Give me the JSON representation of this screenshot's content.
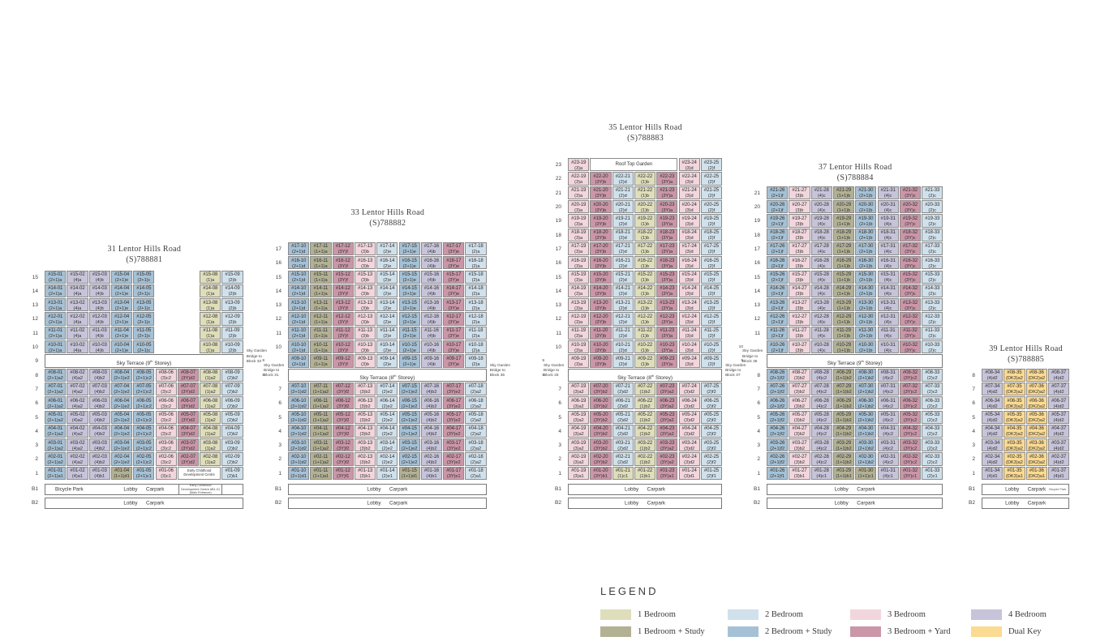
{
  "legend": {
    "title": "LEGEND",
    "items": [
      {
        "label": "1 Bedroom",
        "color": "#dfdebb"
      },
      {
        "label": "1 Bedroom + Study",
        "color": "#b3b194"
      },
      {
        "label": "2 Bedroom",
        "color": "#d0e1ec"
      },
      {
        "label": "2 Bedroom + Study",
        "color": "#a6c1d5"
      },
      {
        "label": "3 Bedroom",
        "color": "#f2d6dd"
      },
      {
        "label": "3 Bedroom + Yard",
        "color": "#ca96a8"
      },
      {
        "label": "4 Bedroom",
        "color": "#c7c4da"
      },
      {
        "label": "Dual Key",
        "color": "#fbda92"
      }
    ]
  },
  "unit_colors": {
    "1": "#dfdebb",
    "1+1": "#b3b194",
    "2": "#d0e1ec",
    "2+1": "#a6c1d5",
    "3": "#f2d6dd",
    "3Y": "#ca96a8",
    "4": "#c7c4da",
    "DK": "#fbda92"
  },
  "blocks": [
    {
      "name": "31 Lentor Hills Road",
      "postal": "(S)788881",
      "bridge_right": "Sky Garden Bridge to Block 33",
      "rows": [
        {
          "floors": [
            "15",
            "14",
            "13",
            "12",
            "11",
            "10"
          ],
          "cells": [
            "01 (2+1)a",
            "02 (4)a",
            "03 (4)b",
            "04 (2+1)e",
            "05 (2+1)c",
            {
              "gap": 2
            },
            "08 (1)a",
            "09 (2)b"
          ]
        },
        {
          "floor": "9",
          "terrace": "Sky Terrace (9th Storey)"
        },
        {
          "floors": [
            "8",
            "7",
            "6",
            "5",
            "4",
            "3",
            "2"
          ],
          "cells": [
            "01 (2+1)a2",
            "02 (4)a2",
            "03 (4)b2",
            "04 (2+1)e2",
            "05 (2+1)c2",
            "06 (3)c2",
            "07 (3Y)d2",
            "08 (1)a2",
            "09 (2)b2"
          ]
        },
        {
          "floors": [
            "1"
          ],
          "cells": [
            "01 (2+1)a1",
            "02 (4)a1",
            "03 (4)b1",
            "04 (1+1)d1",
            "05 (2+1)c1",
            "06 (3)c1",
            {
              "box": "Early Childhood Development Centre",
              "span": 2,
              "small": true
            },
            "09 (2)b1"
          ]
        },
        {
          "floor": "B1",
          "basement": {
            "left": "Bicycle Park",
            "center": "Lobby      Carpark",
            "rightbox": "Early Childhood Development Centre #B1-01 (Main Entrance)"
          }
        },
        {
          "floor": "B2",
          "basement": {
            "center": "Lobby      Carpark"
          }
        }
      ]
    },
    {
      "name": "33 Lentor Hills Road",
      "postal": "(S)788882",
      "bridge_left": "Sky Garden Bridge to Block 31",
      "bridge_right": "Sky Garden Bridge to Block 35",
      "rows": [
        {
          "floors": [
            "17",
            "16",
            "15",
            "14",
            "13",
            "12",
            "11",
            "10",
            "9"
          ],
          "cells": [
            "10 (2+1)d",
            "11 (1+1)a",
            "12 (3Y)f",
            "13 (3)b",
            "14 (2)e",
            "15 (2+1)e",
            "16 (4)b",
            "17 (3Y)e",
            "18 (2)a"
          ]
        },
        {
          "floor": "8",
          "terrace": "Sky Terrace (8th Storey)"
        },
        {
          "floors": [
            "7",
            "6",
            "5",
            "4",
            "3",
            "2"
          ],
          "cells": [
            "10 (2+1)d2",
            "11 (1+1)a2",
            "12 (3Y)f2",
            "13 (3)b2",
            "14 (2)e2",
            "15 (2+1)e2",
            "16 (4)b2",
            "17 (3Y)e2",
            "18 (2)a2"
          ]
        },
        {
          "floors": [
            "1"
          ],
          "cells": [
            "10 (2+1)d1",
            "11 (1+1)a1",
            "12 (3Y)f1",
            "13 (3)b1",
            "14 (2)e1",
            "15 (1+1)d1",
            "16 (4)b1",
            "17 (3Y)e1",
            "18 (2)a1"
          ]
        },
        {
          "floor": "B1",
          "basement": {
            "center": "Lobby      Carpark"
          }
        },
        {
          "floor": "B2",
          "basement": {
            "center": "Lobby      Carpark"
          }
        }
      ]
    },
    {
      "name": "35 Lentor Hills Road",
      "postal": "(S)788883",
      "bridge_left": "Sky Garden Bridge to Block 33",
      "bridge_right": "Sky Garden Bridge to Block 37",
      "rows": [
        {
          "floors": [
            "23"
          ],
          "cells": [
            "19 (3)a",
            {
              "box": "Roof Top Garden",
              "span": 4
            },
            "24 (3)d",
            "25 (2)f"
          ]
        },
        {
          "floors": [
            "22",
            "21",
            "20",
            "19",
            "18",
            "17",
            "16",
            "15",
            "14",
            "13",
            "12",
            "11",
            "10",
            "9"
          ],
          "cells": [
            "19 (3)a",
            "20 (3Y)b",
            "21 (2)d",
            "22 (1)b",
            "23 (3Y)a",
            "24 (3)d",
            "25 (2)f"
          ]
        },
        {
          "floor": "8",
          "terrace": "Sky Terrace (8th Storey)"
        },
        {
          "floors": [
            "7",
            "6",
            "5",
            "4",
            "3",
            "2"
          ],
          "cells": [
            "19 (3)a2",
            "20 (3Y)b2",
            "21 (2)d2",
            "22 (1)b2",
            "23 (3Y)a2",
            "24 (3)d2",
            "25 (2)f2"
          ]
        },
        {
          "floors": [
            "1"
          ],
          "cells": [
            "19 (3)a1",
            "20 (3Y)b1",
            "21 (1)c1",
            "22 (1)b1",
            "23 (3Y)a1",
            "24 (3)d1",
            "25 (2)f1"
          ]
        },
        {
          "floor": "B1",
          "basement": {
            "center": "Lobby      Carpark"
          }
        },
        {
          "floor": "B2",
          "basement": {
            "center": "Lobby      Carpark"
          }
        }
      ]
    },
    {
      "name": "37 Lentor Hills Road",
      "postal": "(S)788884",
      "bridge_left": "Sky Garden Bridge to Block 35",
      "rows": [
        {
          "floors": [
            "21",
            "20",
            "19",
            "18",
            "17",
            "16",
            "15",
            "14",
            "13",
            "12",
            "11",
            "10"
          ],
          "cells": [
            "26 (2+1)f",
            "27 (3)b",
            "28 (4)c",
            "29 (1+1)b",
            "30 (2+1)b",
            "31 (4)c",
            "32 (3Y)c",
            "33 (2)c"
          ]
        },
        {
          "floor": "9",
          "terrace": "Sky Terrace (9th Storey)"
        },
        {
          "floors": [
            "8",
            "7",
            "6",
            "5",
            "4",
            "3",
            "2"
          ],
          "cells": [
            "26 (2+1)f2",
            "27 (3)b2",
            "28 (4)c2",
            "29 (1+1)b2",
            "30 (2+1)b2",
            "31 (4)c2",
            "32 (3Y)c2",
            "33 (2)c2"
          ]
        },
        {
          "floors": [
            "1"
          ],
          "cells": [
            "26 (2+1)f1",
            "27 (3)b1",
            "28 (4)c1",
            "29 (1+1)b1",
            "30 (1+1)c1",
            "31 (4)c1",
            "32 (3Y)c1",
            "33 (2)c1"
          ]
        },
        {
          "floor": "B1",
          "basement": {
            "center": "Lobby      Carpark"
          }
        },
        {
          "floor": "B2",
          "basement": {
            "center": "Lobby      Carpark"
          }
        }
      ]
    },
    {
      "name": "39 Lentor Hills Road",
      "postal": "(S)788885",
      "rows": [
        {
          "floors": [
            "8",
            "7",
            "6",
            "5",
            "4",
            "3",
            "2"
          ],
          "cells": [
            "34 (4)d2",
            "35 (DK3)a2",
            "36 (DK2)a2",
            "37 (4)d2"
          ]
        },
        {
          "floors": [
            "1"
          ],
          "cells": [
            "34 (4)d1",
            "35 (DK3)a1",
            "36 (DK2)a1",
            "37 (4)d1"
          ]
        },
        {
          "floor": "B1",
          "basement": {
            "center": "Lobby      Carpark",
            "right_small": "Bicycle Park"
          }
        },
        {
          "floor": "B2",
          "basement": {
            "center": "Lobby      Carpark"
          }
        }
      ]
    }
  ]
}
